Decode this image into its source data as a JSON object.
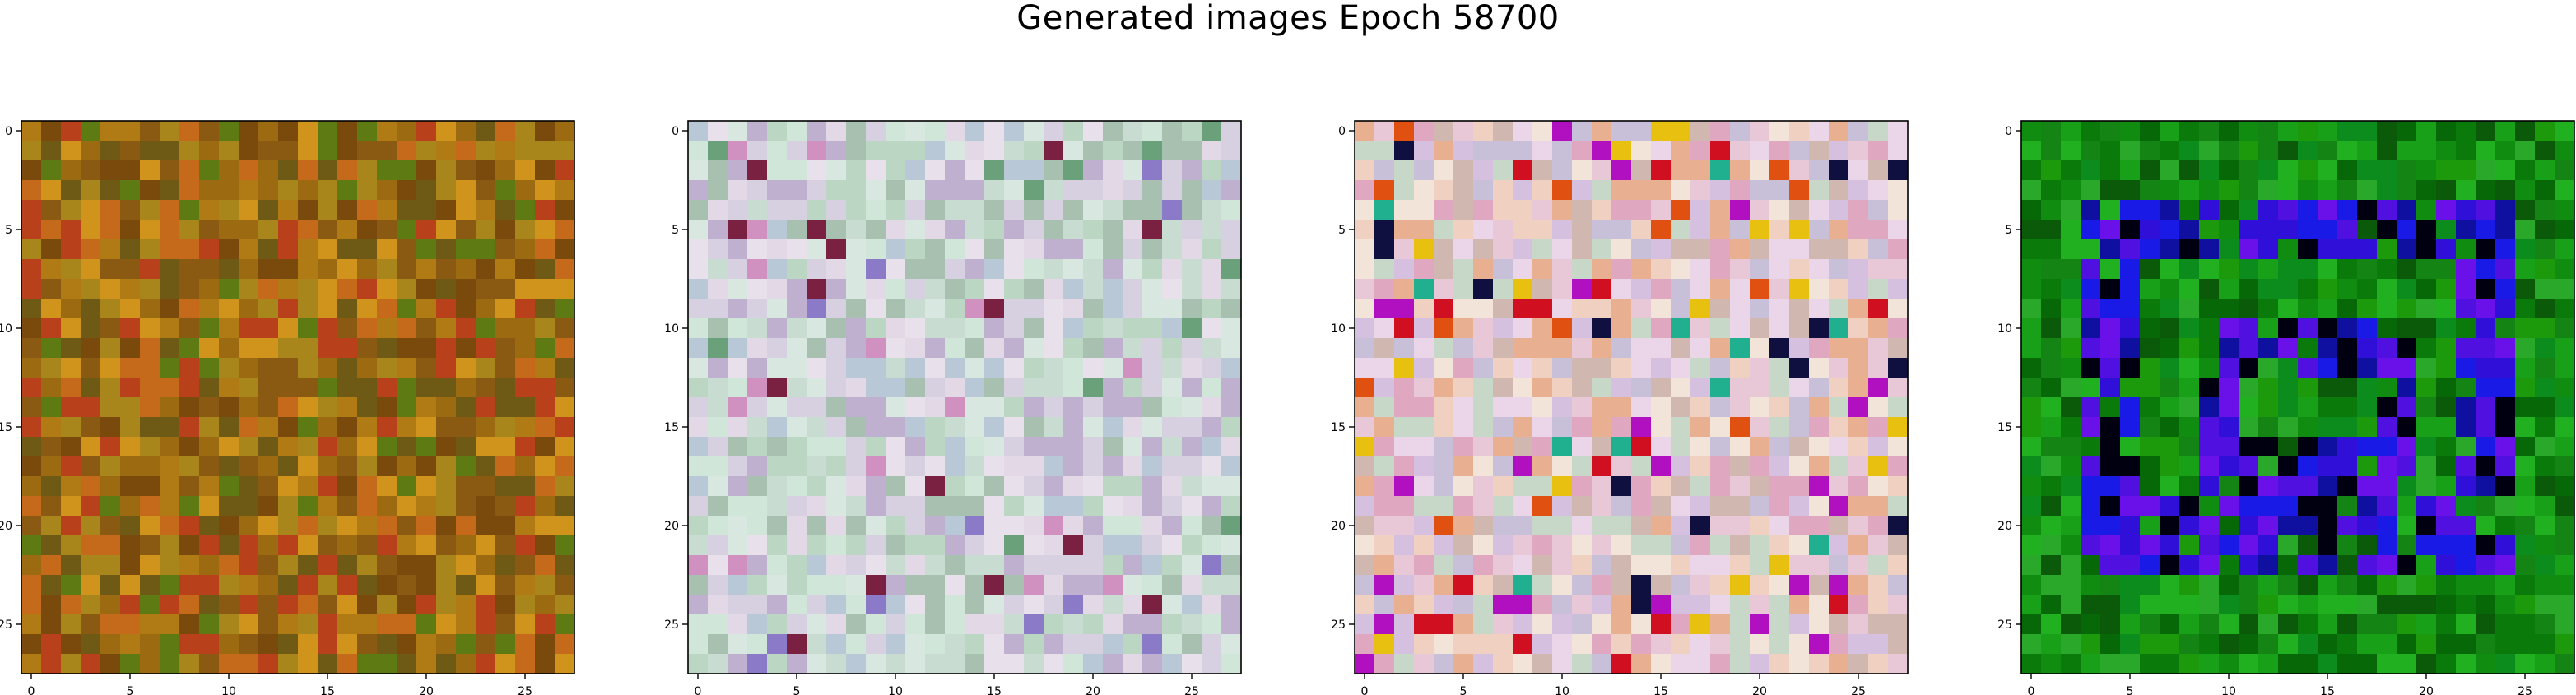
{
  "figure": {
    "suptitle": "Generated images Epoch 58700"
  },
  "chart_data": [
    {
      "type": "heatmap",
      "title": "",
      "xlabel": "",
      "ylabel": "",
      "grid_size": 28,
      "xlim": [
        -0.5,
        27.5
      ],
      "ylim": [
        27.5,
        -0.5
      ],
      "xticks": [
        0,
        5,
        10,
        15,
        20,
        25
      ],
      "yticks": [
        0,
        5,
        10,
        15,
        20,
        25
      ],
      "grid": false,
      "palette": [
        "#7a4a0c",
        "#9c6a10",
        "#b07a14",
        "#8a5a12",
        "#c46a1a",
        "#6e5a14",
        "#a8861c",
        "#5e7a12",
        "#b8401a",
        "#d0941c"
      ],
      "accent_palette": [
        "#ffffff"
      ],
      "accent_ratio": 0.0,
      "seed": 11
    },
    {
      "type": "heatmap",
      "title": "",
      "xlabel": "",
      "ylabel": "",
      "grid_size": 28,
      "xlim": [
        -0.5,
        27.5
      ],
      "ylim": [
        27.5,
        -0.5
      ],
      "xticks": [
        0,
        5,
        10,
        15,
        20,
        25
      ],
      "yticks": [
        0,
        5,
        10,
        15,
        20,
        25
      ],
      "grid": false,
      "palette": [
        "#d6d0e0",
        "#c8dcd2",
        "#e2d8e6",
        "#b8c8d6",
        "#d0e6d8",
        "#e8e0ea",
        "#a8c0b0",
        "#c0b0d0",
        "#d8e8e0",
        "#bcd6c4"
      ],
      "accent_palette": [
        "#8a7ac8",
        "#6aa07a",
        "#d090c0",
        "#7a2040"
      ],
      "accent_ratio": 0.07,
      "seed": 23
    },
    {
      "type": "heatmap",
      "title": "",
      "xlabel": "",
      "ylabel": "",
      "grid_size": 28,
      "xlim": [
        -0.5,
        27.5
      ],
      "ylim": [
        27.5,
        -0.5
      ],
      "xticks": [
        0,
        5,
        10,
        15,
        20,
        25
      ],
      "yticks": [
        0,
        5,
        10,
        15,
        20,
        25
      ],
      "grid": false,
      "palette": [
        "#e8c8d6",
        "#f0d0c0",
        "#d6c0e0",
        "#c8d8c8",
        "#f2e4d8",
        "#e0a8c0",
        "#e8b090",
        "#d0b8b0",
        "#ead6e8",
        "#c8c0d8"
      ],
      "accent_palette": [
        "#d01020",
        "#e05010",
        "#b010c0",
        "#101040",
        "#e8c010",
        "#20b090"
      ],
      "accent_ratio": 0.12,
      "seed": 37
    },
    {
      "type": "heatmap",
      "title": "",
      "xlabel": "",
      "ylabel": "",
      "grid_size": 28,
      "xlim": [
        -0.5,
        27.5
      ],
      "ylim": [
        27.5,
        -0.5
      ],
      "xticks": [
        0,
        5,
        10,
        15,
        20,
        25
      ],
      "yticks": [
        0,
        5,
        10,
        15,
        20,
        25
      ],
      "grid": false,
      "palette": [
        "#108c10",
        "#0a7a0a",
        "#18a018",
        "#066806",
        "#20b020",
        "#0c8c1c",
        "#148414",
        "#0a5a0a",
        "#1c9a0c",
        "#2aa82a"
      ],
      "accent_palette": [
        "#1a1ae6",
        "#3010d8",
        "#5010e0",
        "#1010a0",
        "#000010",
        "#6a10e8"
      ],
      "accent_ratio": 0.0,
      "seed": 53
    }
  ]
}
